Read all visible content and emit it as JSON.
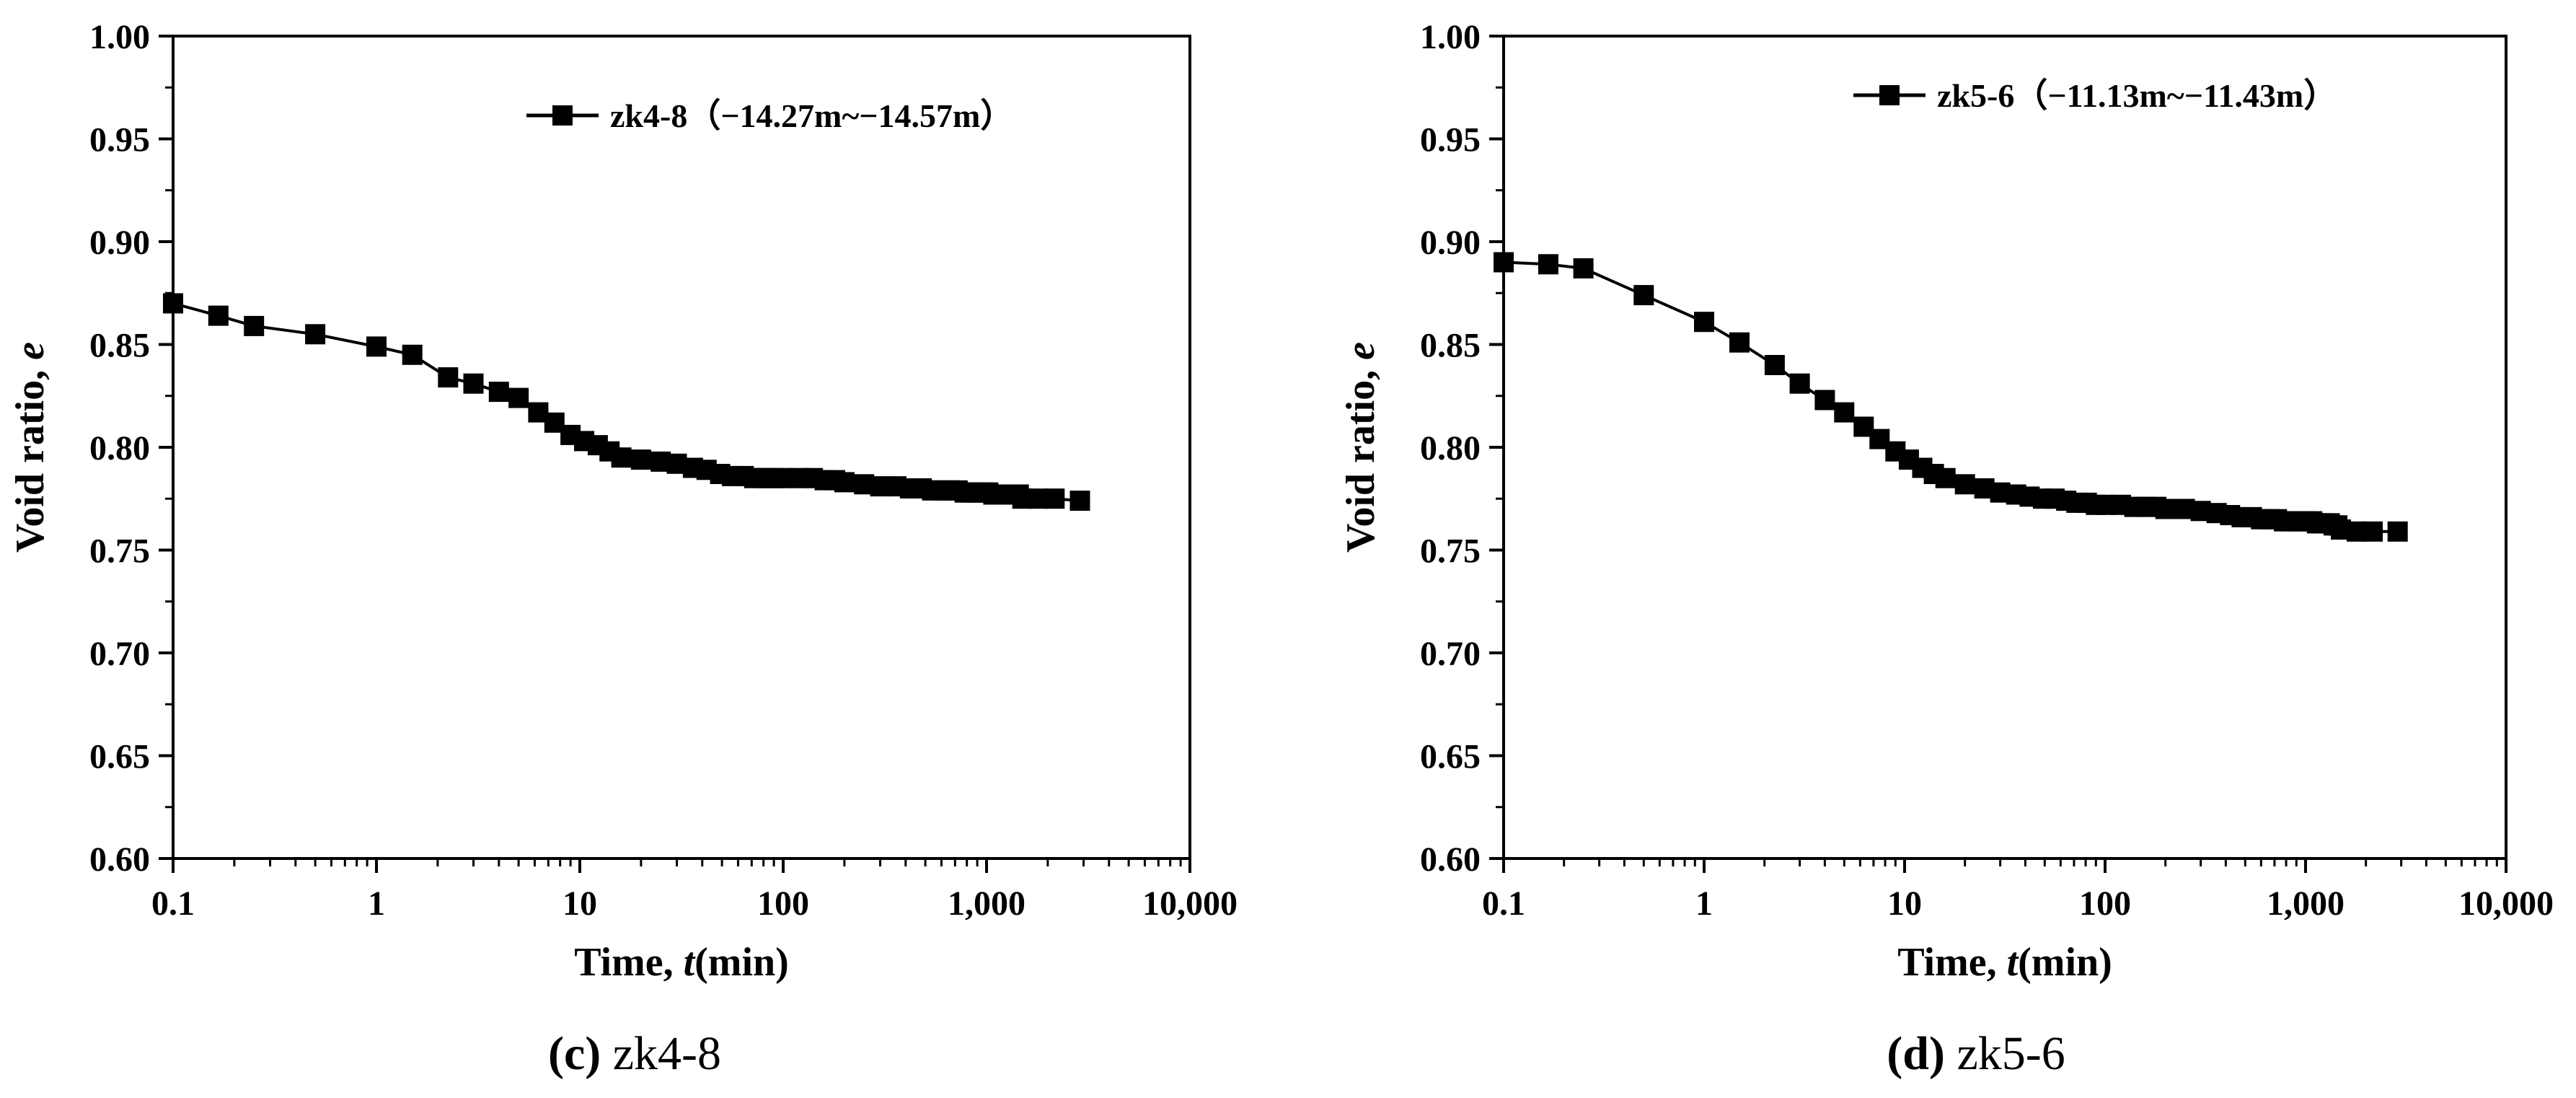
{
  "chart_data": [
    {
      "type": "line",
      "caption": {
        "letter": "(c)",
        "text": " zk4-8"
      },
      "xlabel": {
        "text": "Time, ",
        "var": "t",
        "unit": "(min)"
      },
      "ylabel": {
        "text": "Void ratio, ",
        "var": "e"
      },
      "xscale": "log",
      "xlim": [
        0.1,
        10000
      ],
      "ylim": [
        0.6,
        1.0
      ],
      "xticks": [
        0.1,
        1,
        10,
        100,
        1000,
        10000
      ],
      "xtick_labels": [
        "0.1",
        "1",
        "10",
        "100",
        "1,000",
        "10,000"
      ],
      "yticks": [
        0.6,
        0.65,
        0.7,
        0.75,
        0.8,
        0.85,
        0.9,
        0.95,
        1.0
      ],
      "ytick_labels": [
        "0.60",
        "0.65",
        "0.70",
        "0.75",
        "0.80",
        "0.85",
        "0.90",
        "0.95",
        "1.00"
      ],
      "legend_position": "top-right",
      "series": [
        {
          "name": "zk4-8（−14.27m~−14.57m）",
          "marker": "square",
          "color": "#000000",
          "x": [
            0.1,
            0.167,
            0.25,
            0.5,
            1,
            1.5,
            2.25,
            3,
            4,
            5,
            6.25,
            7.5,
            9,
            10.5,
            12.25,
            14,
            16,
            20,
            25,
            30,
            36,
            42,
            49,
            56,
            64,
            72,
            81,
            90,
            100,
            120,
            140,
            160,
            180,
            200,
            250,
            300,
            360,
            420,
            480,
            540,
            600,
            660,
            720,
            780,
            840,
            900,
            960,
            1020,
            1080,
            1140,
            1200,
            1260,
            1320,
            1380,
            1440,
            1500,
            1800,
            2160,
            2880
          ],
          "y": [
            0.87,
            0.864,
            0.859,
            0.855,
            0.849,
            0.845,
            0.834,
            0.831,
            0.827,
            0.824,
            0.817,
            0.812,
            0.806,
            0.803,
            0.801,
            0.798,
            0.795,
            0.794,
            0.793,
            0.792,
            0.79,
            0.789,
            0.787,
            0.786,
            0.786,
            0.785,
            0.785,
            0.785,
            0.785,
            0.785,
            0.785,
            0.784,
            0.784,
            0.783,
            0.782,
            0.781,
            0.781,
            0.78,
            0.78,
            0.779,
            0.779,
            0.779,
            0.779,
            0.778,
            0.778,
            0.778,
            0.778,
            0.778,
            0.777,
            0.777,
            0.777,
            0.777,
            0.777,
            0.777,
            0.777,
            0.775,
            0.775,
            0.775,
            0.774
          ]
        }
      ]
    },
    {
      "type": "line",
      "caption": {
        "letter": "(d)",
        "text": " zk5-6"
      },
      "xlabel": {
        "text": "Time, ",
        "var": "t",
        "unit": "(min)"
      },
      "ylabel": {
        "text": "Void ratio, ",
        "var": "e"
      },
      "xscale": "log",
      "xlim": [
        0.1,
        10000
      ],
      "ylim": [
        0.6,
        1.0
      ],
      "xticks": [
        0.1,
        1,
        10,
        100,
        1000,
        10000
      ],
      "xtick_labels": [
        "0.1",
        "1",
        "10",
        "100",
        "1,000",
        "10,000"
      ],
      "yticks": [
        0.6,
        0.65,
        0.7,
        0.75,
        0.8,
        0.85,
        0.9,
        0.95,
        1.0
      ],
      "ytick_labels": [
        "0.60",
        "0.65",
        "0.70",
        "0.75",
        "0.80",
        "0.85",
        "0.90",
        "0.95",
        "1.00"
      ],
      "legend_position": "top-right",
      "series": [
        {
          "name": "zk5-6（−11.13m~−11.43m）",
          "marker": "square",
          "color": "#000000",
          "x": [
            0.1,
            0.167,
            0.25,
            0.5,
            1,
            1.5,
            2.25,
            3,
            4,
            5,
            6.25,
            7.5,
            9,
            10.5,
            12.25,
            14,
            16,
            20,
            25,
            30,
            36,
            42,
            49,
            56,
            64,
            72,
            81,
            90,
            100,
            120,
            140,
            160,
            180,
            200,
            250,
            300,
            360,
            420,
            480,
            540,
            600,
            660,
            720,
            780,
            840,
            900,
            960,
            1020,
            1080,
            1140,
            1200,
            1260,
            1320,
            1380,
            1440,
            1500,
            1800,
            2160,
            2880
          ],
          "y": [
            0.89,
            0.889,
            0.887,
            0.874,
            0.861,
            0.851,
            0.84,
            0.831,
            0.823,
            0.817,
            0.81,
            0.804,
            0.798,
            0.794,
            0.79,
            0.787,
            0.785,
            0.782,
            0.78,
            0.778,
            0.777,
            0.776,
            0.775,
            0.775,
            0.774,
            0.773,
            0.773,
            0.772,
            0.772,
            0.772,
            0.771,
            0.771,
            0.771,
            0.77,
            0.77,
            0.769,
            0.768,
            0.767,
            0.766,
            0.766,
            0.765,
            0.765,
            0.765,
            0.764,
            0.764,
            0.764,
            0.764,
            0.764,
            0.764,
            0.763,
            0.763,
            0.763,
            0.763,
            0.762,
            0.762,
            0.76,
            0.759,
            0.759,
            0.759
          ]
        }
      ]
    }
  ]
}
